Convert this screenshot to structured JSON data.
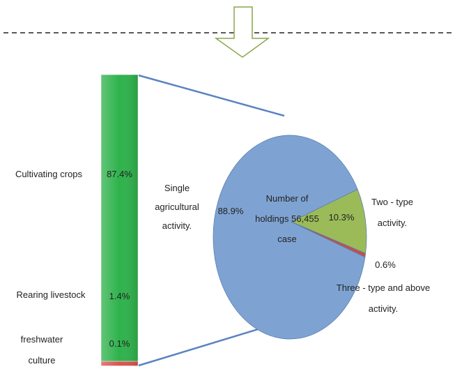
{
  "chart_data": {
    "type": "bar-of-pie",
    "pie": {
      "center_label": "Number of holdings 56,455 case",
      "categories": [
        "Single agricultural activity.",
        "Two - type activity.",
        "Three - type and above activity."
      ],
      "values": [
        88.9,
        10.3,
        0.6
      ],
      "value_labels": [
        "88.9%",
        "10.3%",
        "0.6%"
      ],
      "colors": [
        "#7ea3d2",
        "#9bbb59",
        "#c0504d"
      ]
    },
    "bar": {
      "categories": [
        "Cultivating crops",
        "Rearing livestock",
        "freshwater culture"
      ],
      "values": [
        87.4,
        1.4,
        0.1
      ],
      "value_labels": [
        "87.4%",
        "1.4%",
        "0.1%"
      ],
      "colors": [
        "#2fb24c",
        "#d9534f",
        "#a9c9ef"
      ]
    }
  }
}
